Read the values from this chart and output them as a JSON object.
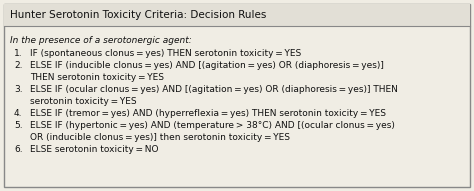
{
  "title": "Hunter Serotonin Toxicity Criteria: Decision Rules",
  "subtitle": "In the presence of a serotonergic agent:",
  "lines": [
    {
      "num": "1.",
      "text": "IF (spontaneous clonus = yes) THEN serotonin toxicity = YES",
      "cont": null
    },
    {
      "num": "2.",
      "text": "ELSE IF (inducible clonus = yes) AND [(agitation = yes) OR (diaphoresis = yes)]",
      "cont": "THEN serotonin toxicity = YES"
    },
    {
      "num": "3.",
      "text": "ELSE IF (ocular clonus = yes) AND [(agitation = yes) OR (diaphoresis = yes)] THEN",
      "cont": "serotonin toxicity = YES"
    },
    {
      "num": "4.",
      "text": "ELSE IF (tremor = yes) AND (hyperreflexia = yes) THEN serotonin toxicity = YES",
      "cont": null
    },
    {
      "num": "5.",
      "text": "ELSE IF (hypertonic = yes) AND (temperature > 38°C) AND [(ocular clonus = yes)",
      "cont": "OR (inducible clonus = yes)] then serotonin toxicity = YES"
    },
    {
      "num": "6.",
      "text": "ELSE serotonin toxicity = NO",
      "cont": null
    }
  ],
  "bg_color": "#f0ede4",
  "title_bg": "#e2dfd6",
  "border_color": "#888888",
  "text_color": "#111111",
  "font_size": 6.5,
  "title_font_size": 7.5
}
